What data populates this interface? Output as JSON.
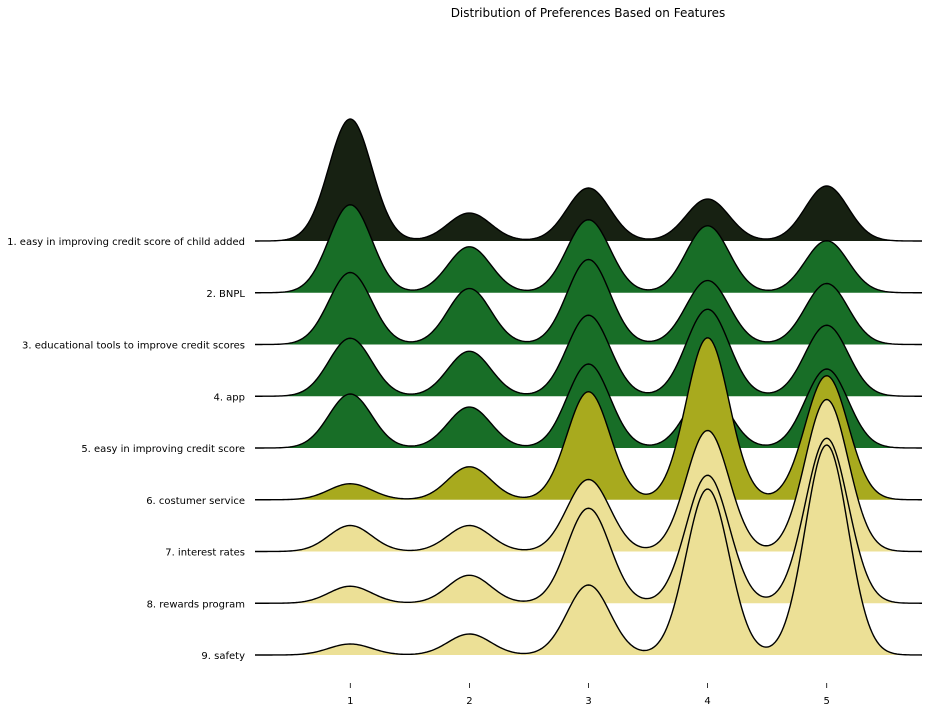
{
  "chart_data": {
    "type": "area",
    "subtype": "ridgeline",
    "title": "Distribution of Preferences Based on Features",
    "x_ticks": [
      "1",
      "2",
      "3",
      "4",
      "5"
    ],
    "xlim": [
      0.2,
      5.8
    ],
    "series": [
      {
        "name": "1. easy in improving credit score of child added",
        "color": "#172112",
        "values": [
          0.122,
          0.028,
          0.053,
          0.042,
          0.055
        ]
      },
      {
        "name": "2. BNPL",
        "color": "#186e27",
        "values": [
          0.088,
          0.046,
          0.073,
          0.067,
          0.052
        ]
      },
      {
        "name": "3. educational tools to improve credit scores",
        "color": "#186e27",
        "values": [
          0.072,
          0.056,
          0.085,
          0.064,
          0.061
        ]
      },
      {
        "name": "4. app",
        "color": "#186e27",
        "values": [
          0.058,
          0.045,
          0.081,
          0.087,
          0.071
        ]
      },
      {
        "name": "5. easy in improving credit score",
        "color": "#186e27",
        "values": [
          0.054,
          0.041,
          0.084,
          0.059,
          0.079
        ]
      },
      {
        "name": "6. costumer service",
        "color": "#a8aa1e",
        "values": [
          0.016,
          0.033,
          0.108,
          0.162,
          0.124
        ]
      },
      {
        "name": "7. interest rates",
        "color": "#ece096",
        "values": [
          0.026,
          0.026,
          0.072,
          0.121,
          0.152
        ]
      },
      {
        "name": "8. rewards program",
        "color": "#ece096",
        "values": [
          0.017,
          0.028,
          0.095,
          0.128,
          0.165
        ]
      },
      {
        "name": "9. safety",
        "color": "#ece096",
        "values": [
          0.011,
          0.021,
          0.07,
          0.166,
          0.21
        ]
      }
    ]
  }
}
